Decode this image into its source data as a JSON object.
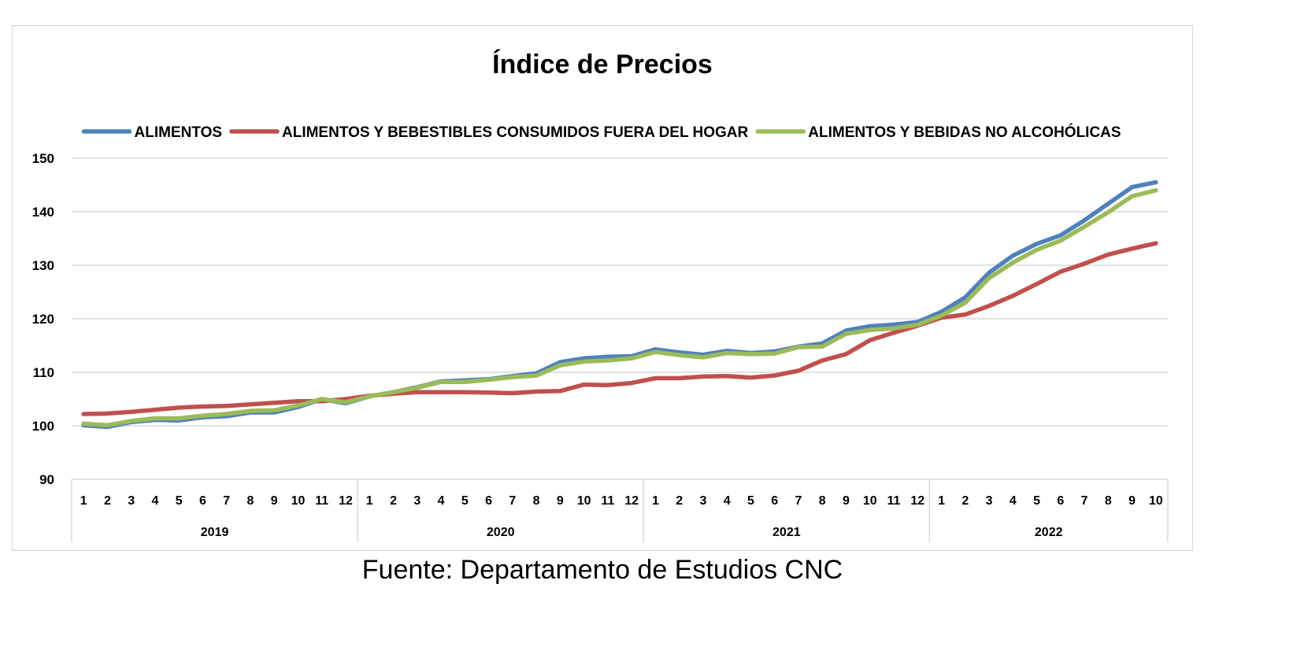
{
  "source": "Fuente: Departamento de Estudios CNC",
  "chart_data": {
    "type": "line",
    "title": "Índice de Precios",
    "xlabel": "",
    "ylabel": "",
    "ylim": [
      90,
      150
    ],
    "yticks": [
      "150",
      "140",
      "130",
      "120",
      "110",
      "100",
      "90"
    ],
    "grid": true,
    "legend_position": "top",
    "month_labels": [
      "1",
      "2",
      "3",
      "4",
      "5",
      "6",
      "7",
      "8",
      "9",
      "10",
      "11",
      "12",
      "1",
      "2",
      "3",
      "4",
      "5",
      "6",
      "7",
      "8",
      "9",
      "10",
      "11",
      "12",
      "1",
      "2",
      "3",
      "4",
      "5",
      "6",
      "7",
      "8",
      "9",
      "10",
      "11",
      "12",
      "1",
      "2",
      "3",
      "4",
      "5",
      "6",
      "7",
      "8",
      "9",
      "10"
    ],
    "years": [
      {
        "label": "2019",
        "months": 12
      },
      {
        "label": "2020",
        "months": 12
      },
      {
        "label": "2021",
        "months": 12
      },
      {
        "label": "2022",
        "months": 10
      }
    ],
    "series": [
      {
        "name": "ALIMENTOS",
        "color": "#4f81bd",
        "values": [
          100.1,
          99.8,
          100.7,
          101.1,
          101.0,
          101.6,
          101.8,
          102.5,
          102.5,
          103.5,
          105.0,
          104.2,
          105.5,
          106.3,
          107.2,
          108.3,
          108.5,
          108.7,
          109.3,
          109.8,
          111.9,
          112.6,
          112.9,
          113.0,
          114.3,
          113.7,
          113.3,
          114.0,
          113.6,
          113.9,
          114.8,
          115.4,
          117.8,
          118.6,
          118.9,
          119.4,
          121.3,
          124.0,
          128.6,
          131.8,
          134.0,
          135.6,
          138.4,
          141.5,
          144.6,
          145.5
        ]
      },
      {
        "name": "ALIMENTOS Y BEBESTIBLES CONSUMIDOS FUERA DEL HOGAR",
        "color": "#c0504d",
        "values": [
          102.2,
          102.3,
          102.6,
          103.0,
          103.4,
          103.6,
          103.7,
          104.0,
          104.3,
          104.6,
          104.6,
          105.0,
          105.6,
          106.0,
          106.3,
          106.3,
          106.3,
          106.2,
          106.1,
          106.4,
          106.5,
          107.7,
          107.6,
          108.0,
          108.9,
          108.9,
          109.2,
          109.3,
          109.0,
          109.4,
          110.3,
          112.2,
          113.4,
          116.0,
          117.4,
          118.7,
          120.2,
          120.8,
          122.4,
          124.3,
          126.5,
          128.8,
          130.3,
          132.0,
          133.1,
          134.1
        ]
      },
      {
        "name": "ALIMENTOS Y BEBIDAS NO ALCOHÓLICAS",
        "color": "#9bbb59",
        "values": [
          100.4,
          100.1,
          100.9,
          101.4,
          101.4,
          101.9,
          102.2,
          102.8,
          102.9,
          103.8,
          105.0,
          104.4,
          105.5,
          106.3,
          107.1,
          108.2,
          108.2,
          108.6,
          109.1,
          109.4,
          111.3,
          112.0,
          112.2,
          112.6,
          113.8,
          113.2,
          112.8,
          113.6,
          113.4,
          113.5,
          114.7,
          114.8,
          117.2,
          117.9,
          118.2,
          118.9,
          120.6,
          123.0,
          127.6,
          130.5,
          132.9,
          134.6,
          137.2,
          139.9,
          142.9,
          144.0
        ]
      }
    ]
  }
}
